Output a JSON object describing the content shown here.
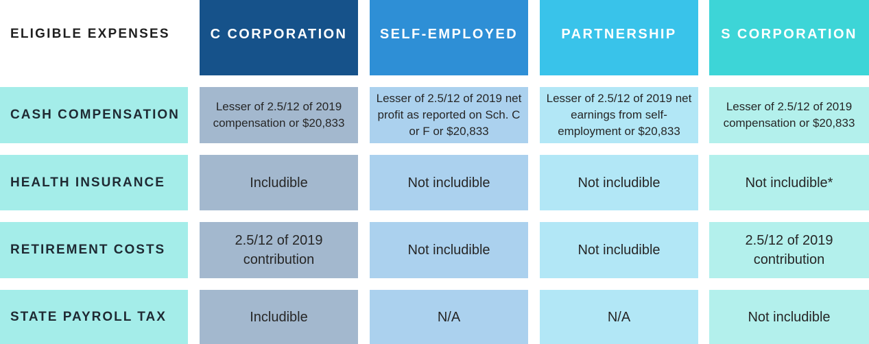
{
  "table": {
    "corner_label": "ELIGIBLE EXPENSES",
    "columns": [
      {
        "label": "C CORPORATION",
        "header_color": "#16528a",
        "cell_color": "#a3b8ce"
      },
      {
        "label": "SELF-EMPLOYED",
        "header_color": "#2e8fd6",
        "cell_color": "#abd1ee"
      },
      {
        "label": "PARTNERSHIP",
        "header_color": "#39c3ea",
        "cell_color": "#b2e7f6"
      },
      {
        "label": "S CORPORATION",
        "header_color": "#3dd5d7",
        "cell_color": "#b3f0ec"
      }
    ],
    "row_header_color": "#a4ede9",
    "rows": [
      {
        "label": "CASH COMPENSATION",
        "cells": [
          "Lesser of 2.5/12 of 2019 compensation or $20,833",
          "Lesser of 2.5/12 of 2019 net profit as reported on Sch. C or F or $20,833",
          "Lesser of 2.5/12 of 2019 net earnings from self-employment or $20,833",
          "Lesser of 2.5/12 of 2019 compensation or $20,833"
        ]
      },
      {
        "label": "HEALTH INSURANCE",
        "cells": [
          "Includible",
          "Not includible",
          "Not includible",
          "Not includible*"
        ]
      },
      {
        "label": "RETIREMENT COSTS",
        "cells": [
          "2.5/12 of 2019 contribution",
          "Not includible",
          "Not includible",
          "2.5/12 of 2019 contribution"
        ]
      },
      {
        "label": "STATE PAYROLL TAX",
        "cells": [
          "Includible",
          "N/A",
          "N/A",
          "Not includible"
        ]
      }
    ]
  }
}
